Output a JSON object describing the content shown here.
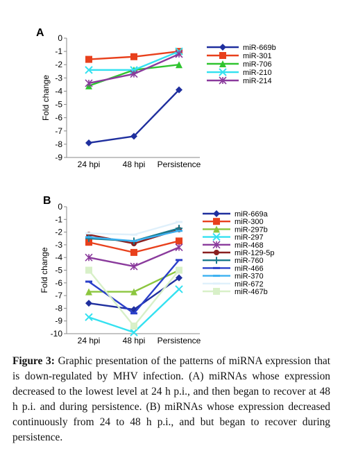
{
  "caption": {
    "label": "Figure 3:",
    "text": " Graphic presentation of the patterns of miRNA expression that is down-regulated by MHV infection. (A) miRNAs whose expression decreased to the lowest level at 24 h p.i., and then began to recover at 48 h p.i. and during persistence. (B) miRNAs whose expression decreased continuously from 24 to 48 h p.i., and but began to recover during persistence."
  },
  "chart_data": [
    {
      "type": "line",
      "panel": "A",
      "categories": [
        "24 hpi",
        "48 hpi",
        "Persistence"
      ],
      "ylabel": "Fold change",
      "ylim": [
        -9,
        0
      ],
      "yticks": [
        0,
        -1,
        -2,
        -3,
        -4,
        -5,
        -6,
        -7,
        -8,
        -9
      ],
      "legend_position": "right",
      "series": [
        {
          "name": "miR-669b",
          "values": [
            -7.9,
            -7.4,
            -3.9
          ],
          "color": "#1f2f9e",
          "marker": "diamond"
        },
        {
          "name": "miR-301",
          "values": [
            -1.6,
            -1.4,
            -1.0
          ],
          "color": "#e8401c",
          "marker": "square"
        },
        {
          "name": "miR-706",
          "values": [
            -3.6,
            -2.4,
            -2.0
          ],
          "color": "#2fc42f",
          "marker": "triangle"
        },
        {
          "name": "miR-210",
          "values": [
            -2.4,
            -2.4,
            -1.0
          ],
          "color": "#34e1f0",
          "marker": "x"
        },
        {
          "name": "miR-214",
          "values": [
            -3.4,
            -2.7,
            -1.2
          ],
          "color": "#8a3a9c",
          "marker": "asterisk"
        }
      ]
    },
    {
      "type": "line",
      "panel": "B",
      "categories": [
        "24 hpi",
        "48 hpi",
        "Persistence"
      ],
      "ylabel": "Fold change",
      "ylim": [
        -10,
        0
      ],
      "yticks": [
        0,
        -1,
        -2,
        -3,
        -4,
        -5,
        -6,
        -7,
        -8,
        -9,
        -10
      ],
      "legend_position": "right",
      "series": [
        {
          "name": "miR-669a",
          "values": [
            -7.6,
            -8.1,
            -5.6
          ],
          "color": "#1f2f9e",
          "marker": "diamond"
        },
        {
          "name": "miR-300",
          "values": [
            -2.8,
            -3.6,
            -2.7
          ],
          "color": "#e8401c",
          "marker": "square"
        },
        {
          "name": "miR-297b",
          "values": [
            -6.7,
            -6.7,
            -5.0
          ],
          "color": "#8cc63f",
          "marker": "triangle"
        },
        {
          "name": "miR-297",
          "values": [
            -8.7,
            -9.9,
            -6.5
          ],
          "color": "#34e1f0",
          "marker": "x"
        },
        {
          "name": "miR-468",
          "values": [
            -4.0,
            -4.7,
            -3.2
          ],
          "color": "#8a3a9c",
          "marker": "asterisk"
        },
        {
          "name": "miR-129-5p",
          "values": [
            -2.2,
            -2.9,
            -1.8
          ],
          "color": "#8a1f1f",
          "marker": "circle"
        },
        {
          "name": "miR-760",
          "values": [
            -2.5,
            -2.7,
            -1.7
          ],
          "color": "#1a7a8c",
          "marker": "plus"
        },
        {
          "name": "miR-466",
          "values": [
            -5.9,
            -8.4,
            -4.2
          ],
          "color": "#2a3fc9",
          "marker": "dash"
        },
        {
          "name": "miR-370",
          "values": [
            -2.4,
            -2.7,
            -1.9
          ],
          "color": "#3ab0f0",
          "marker": "dash"
        },
        {
          "name": "miR-672",
          "values": [
            -2.1,
            -2.2,
            -1.2
          ],
          "color": "#dff0fb",
          "marker": "dash"
        },
        {
          "name": "miR-467b",
          "values": [
            -5.0,
            -9.4,
            -5.0
          ],
          "color": "#d8f0c8",
          "marker": "square"
        }
      ]
    }
  ]
}
